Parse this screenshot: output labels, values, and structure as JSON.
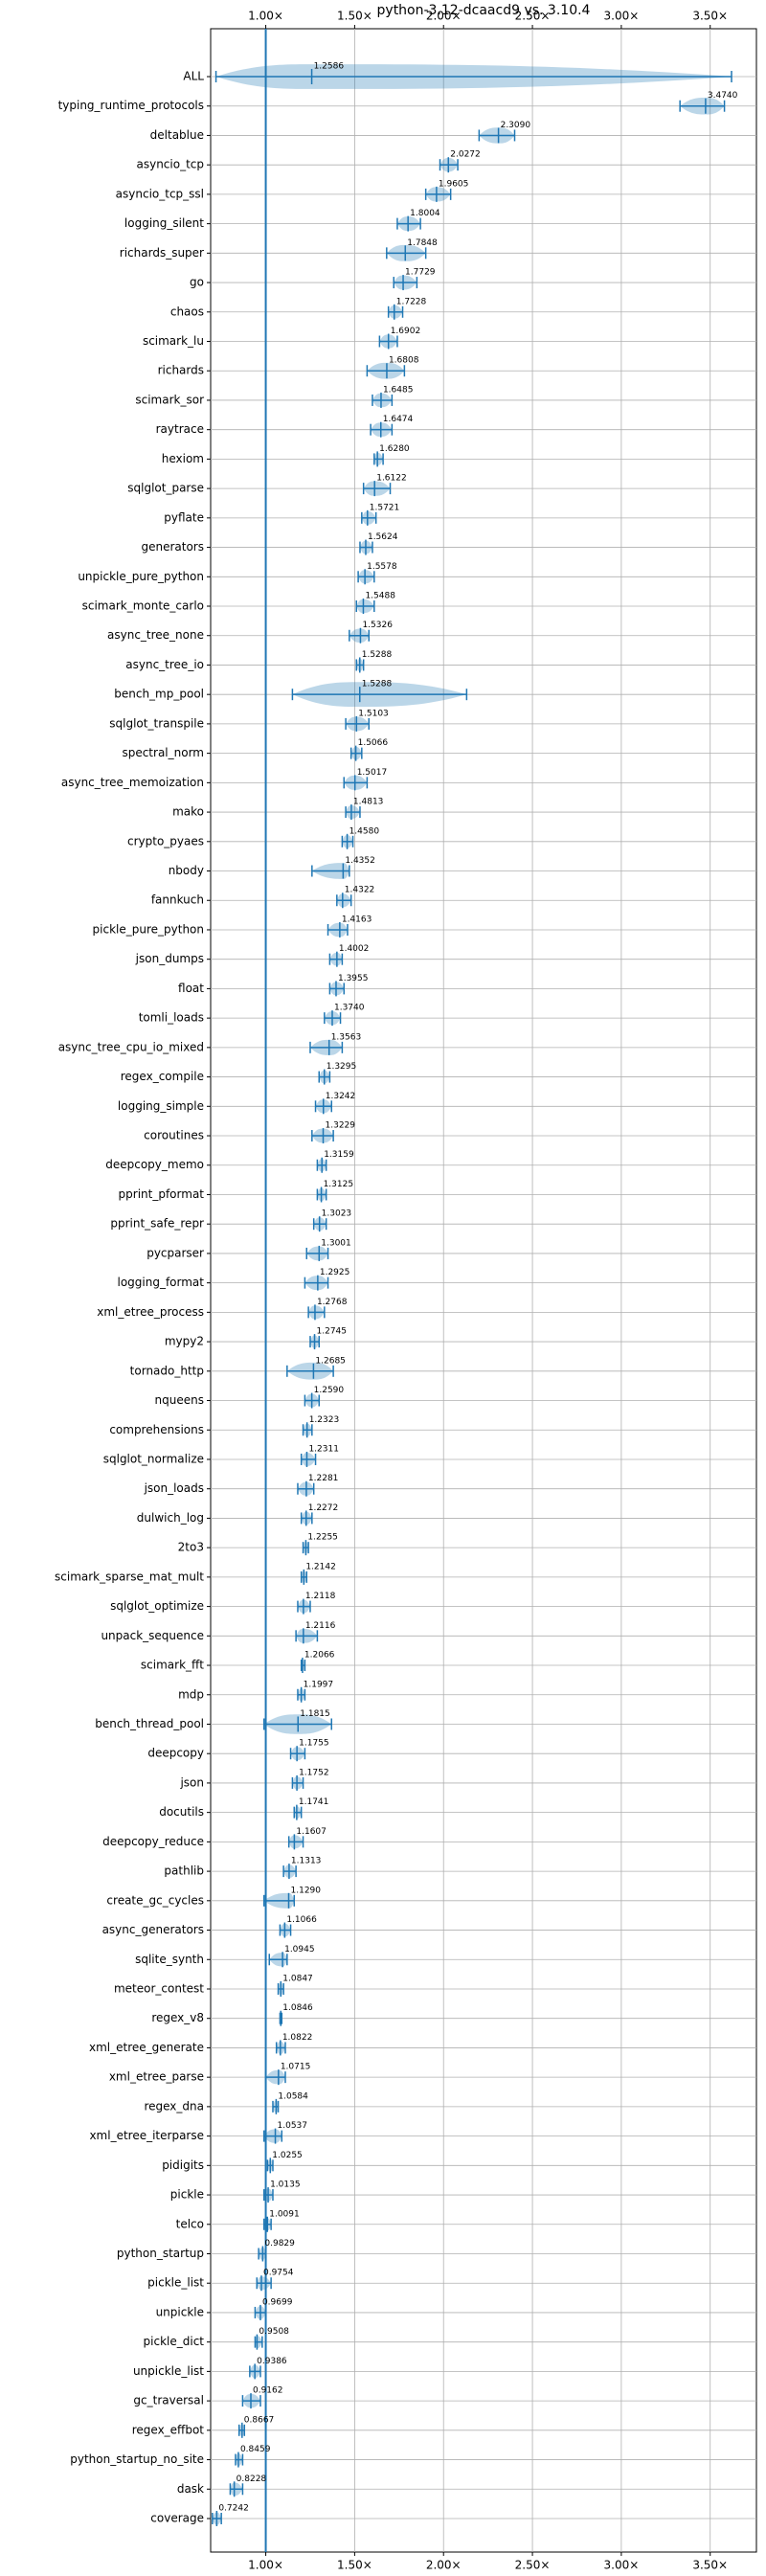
{
  "chart_data": {
    "type": "violin",
    "title": "python-3.12-dcaacd9 vs. 3.10.4",
    "color": "#1f77b4",
    "grid": true,
    "reference_line": 1,
    "xlim": [
      0.69,
      3.76
    ],
    "xticks": [
      {
        "value": 1,
        "label": "1.00×"
      },
      {
        "value": 1.5,
        "label": "1.50×"
      },
      {
        "value": 2,
        "label": "2.00×"
      },
      {
        "value": 2.5,
        "label": "2.50×"
      },
      {
        "value": 3,
        "label": "3.00×"
      },
      {
        "value": 3.5,
        "label": "3.50×"
      }
    ],
    "categories": [
      "ALL",
      "typing_runtime_protocols",
      "deltablue",
      "asyncio_tcp",
      "asyncio_tcp_ssl",
      "logging_silent",
      "richards_super",
      "go",
      "chaos",
      "scimark_lu",
      "richards",
      "scimark_sor",
      "raytrace",
      "hexiom",
      "sqlglot_parse",
      "pyflate",
      "generators",
      "unpickle_pure_python",
      "scimark_monte_carlo",
      "async_tree_none",
      "async_tree_io",
      "bench_mp_pool",
      "sqlglot_transpile",
      "spectral_norm",
      "async_tree_memoization",
      "mako",
      "crypto_pyaes",
      "nbody",
      "fannkuch",
      "pickle_pure_python",
      "json_dumps",
      "float",
      "tomli_loads",
      "async_tree_cpu_io_mixed",
      "regex_compile",
      "logging_simple",
      "coroutines",
      "deepcopy_memo",
      "pprint_pformat",
      "pprint_safe_repr",
      "pycparser",
      "logging_format",
      "xml_etree_process",
      "mypy2",
      "tornado_http",
      "nqueens",
      "comprehensions",
      "sqlglot_normalize",
      "json_loads",
      "dulwich_log",
      "2to3",
      "scimark_sparse_mat_mult",
      "sqlglot_optimize",
      "unpack_sequence",
      "scimark_fft",
      "mdp",
      "bench_thread_pool",
      "deepcopy",
      "json",
      "docutils",
      "deepcopy_reduce",
      "pathlib",
      "create_gc_cycles",
      "async_generators",
      "sqlite_synth",
      "meteor_contest",
      "regex_v8",
      "xml_etree_generate",
      "xml_etree_parse",
      "regex_dna",
      "xml_etree_iterparse",
      "pidigits",
      "pickle",
      "telco",
      "python_startup",
      "pickle_list",
      "unpickle",
      "pickle_dict",
      "unpickle_list",
      "gc_traversal",
      "regex_effbot",
      "python_startup_no_site",
      "dask",
      "coverage"
    ],
    "values": [
      1.2586,
      3.474,
      2.309,
      2.0272,
      1.9605,
      1.8004,
      1.7848,
      1.7729,
      1.7228,
      1.6902,
      1.6808,
      1.6485,
      1.6474,
      1.628,
      1.6122,
      1.5721,
      1.5624,
      1.5578,
      1.5488,
      1.5326,
      1.5288,
      1.5288,
      1.5103,
      1.5066,
      1.5017,
      1.4813,
      1.458,
      1.4352,
      1.4322,
      1.4163,
      1.4002,
      1.3955,
      1.374,
      1.3563,
      1.3295,
      1.3242,
      1.3229,
      1.3159,
      1.3125,
      1.3023,
      1.3001,
      1.2925,
      1.2768,
      1.2745,
      1.2685,
      1.259,
      1.2323,
      1.2311,
      1.2281,
      1.2272,
      1.2255,
      1.2142,
      1.2118,
      1.2116,
      1.2066,
      1.1997,
      1.1815,
      1.1755,
      1.1752,
      1.1741,
      1.1607,
      1.1313,
      1.129,
      1.1066,
      1.0945,
      1.0847,
      1.0846,
      1.0822,
      1.0715,
      1.0584,
      1.0537,
      1.0255,
      1.0135,
      1.0091,
      0.9829,
      0.9754,
      0.9699,
      0.9508,
      0.9386,
      0.9162,
      0.8667,
      0.8459,
      0.8228,
      0.7242
    ],
    "value_labels": [
      "1.2586",
      "3.4740",
      "2.3090",
      "2.0272",
      "1.9605",
      "1.8004",
      "1.7848",
      "1.7729",
      "1.7228",
      "1.6902",
      "1.6808",
      "1.6485",
      "1.6474",
      "1.6280",
      "1.6122",
      "1.5721",
      "1.5624",
      "1.5578",
      "1.5488",
      "1.5326",
      "1.5288",
      "1.5288",
      "1.5103",
      "1.5066",
      "1.5017",
      "1.4813",
      "1.4580",
      "1.4352",
      "1.4322",
      "1.4163",
      "1.4002",
      "1.3955",
      "1.3740",
      "1.3563",
      "1.3295",
      "1.3242",
      "1.3229",
      "1.3159",
      "1.3125",
      "1.3023",
      "1.3001",
      "1.2925",
      "1.2768",
      "1.2745",
      "1.2685",
      "1.2590",
      "1.2323",
      "1.2311",
      "1.2281",
      "1.2272",
      "1.2255",
      "1.2142",
      "1.2118",
      "1.2116",
      "1.2066",
      "1.1997",
      "1.1815",
      "1.1755",
      "1.1752",
      "1.1741",
      "1.1607",
      "1.1313",
      "1.1290",
      "1.1066",
      "1.0945",
      "1.0847",
      "1.0846",
      "1.0822",
      "1.0715",
      "1.0584",
      "1.0537",
      "1.0255",
      "1.0135",
      "1.0091",
      "0.9829",
      "0.9754",
      "0.9699",
      "0.9508",
      "0.9386",
      "0.9162",
      "0.8667",
      "0.8459",
      "0.8228",
      "0.7242"
    ],
    "min": [
      0.72,
      3.33,
      2.2,
      1.98,
      1.9,
      1.74,
      1.68,
      1.72,
      1.69,
      1.64,
      1.57,
      1.6,
      1.59,
      1.61,
      1.55,
      1.54,
      1.53,
      1.52,
      1.51,
      1.47,
      1.51,
      1.15,
      1.45,
      1.48,
      1.44,
      1.45,
      1.43,
      1.26,
      1.4,
      1.35,
      1.36,
      1.36,
      1.33,
      1.25,
      1.3,
      1.28,
      1.26,
      1.29,
      1.29,
      1.27,
      1.23,
      1.22,
      1.24,
      1.25,
      1.12,
      1.22,
      1.21,
      1.2,
      1.18,
      1.2,
      1.21,
      1.2,
      1.18,
      1.17,
      1.2,
      1.18,
      0.99,
      1.14,
      1.15,
      1.16,
      1.13,
      1.1,
      0.99,
      1.08,
      1.02,
      1.07,
      1.08,
      1.06,
      1.0,
      1.04,
      0.99,
      1.01,
      0.99,
      0.99,
      0.96,
      0.95,
      0.94,
      0.94,
      0.91,
      0.87,
      0.85,
      0.83,
      0.8,
      0.7
    ],
    "max": [
      3.62,
      3.58,
      2.4,
      2.08,
      2.04,
      1.87,
      1.9,
      1.85,
      1.77,
      1.74,
      1.78,
      1.71,
      1.71,
      1.66,
      1.7,
      1.62,
      1.6,
      1.61,
      1.61,
      1.58,
      1.55,
      2.13,
      1.58,
      1.54,
      1.57,
      1.53,
      1.49,
      1.47,
      1.48,
      1.46,
      1.43,
      1.44,
      1.42,
      1.43,
      1.36,
      1.37,
      1.38,
      1.34,
      1.34,
      1.34,
      1.35,
      1.35,
      1.33,
      1.3,
      1.38,
      1.3,
      1.26,
      1.28,
      1.27,
      1.26,
      1.24,
      1.23,
      1.25,
      1.29,
      1.22,
      1.22,
      1.37,
      1.22,
      1.21,
      1.2,
      1.21,
      1.17,
      1.16,
      1.14,
      1.12,
      1.1,
      1.09,
      1.11,
      1.11,
      1.07,
      1.09,
      1.04,
      1.04,
      1.03,
      1.0,
      1.03,
      1.0,
      0.98,
      0.97,
      0.97,
      0.88,
      0.87,
      0.87,
      0.75
    ]
  }
}
